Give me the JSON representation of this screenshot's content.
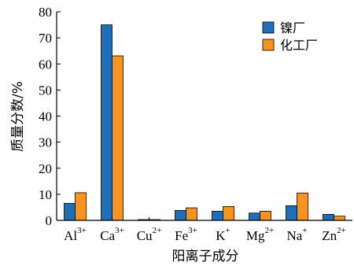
{
  "chart_data": {
    "type": "bar",
    "categories": [
      {
        "base": "Al",
        "sup": "3+"
      },
      {
        "base": "Ca",
        "sup": "3+"
      },
      {
        "base": "Cu",
        "sup": "2+"
      },
      {
        "base": "Fe",
        "sup": "3+"
      },
      {
        "base": "K",
        "sup": "+"
      },
      {
        "base": "Mg",
        "sup": "2+"
      },
      {
        "base": "Na",
        "sup": "+"
      },
      {
        "base": "Zn",
        "sup": "2+"
      }
    ],
    "series": [
      {
        "name": "镍厂",
        "color": "#1f6fb8",
        "values": [
          6.5,
          75.0,
          0.3,
          3.8,
          3.5,
          2.8,
          5.6,
          2.3
        ]
      },
      {
        "name": "化工厂",
        "color": "#f7931e",
        "values": [
          10.6,
          63.1,
          0.3,
          4.8,
          5.3,
          3.5,
          10.5,
          1.6
        ]
      }
    ],
    "xlabel": "阳离子成分",
    "ylabel": "质量分数/%",
    "ylim": [
      0,
      80
    ],
    "yticks": [
      0,
      10,
      20,
      30,
      40,
      50,
      60,
      70,
      80
    ],
    "legend_position": "top-right",
    "grid": false
  }
}
